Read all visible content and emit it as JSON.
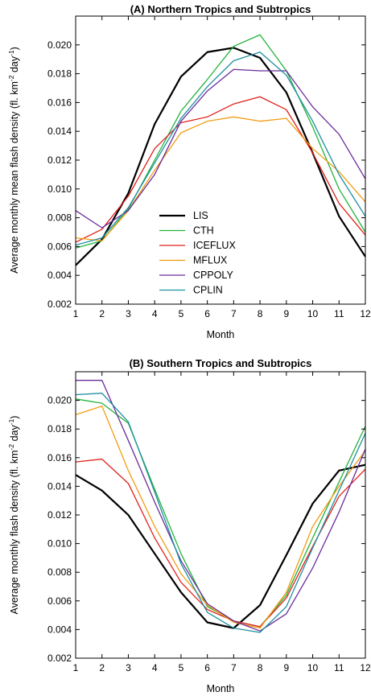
{
  "chart_data": [
    {
      "type": "line",
      "title": "(A) Northern Tropics and Subtropics",
      "xlabel": "Month",
      "ylabel": "Average monthly mean flash density (fl. km",
      "ylabel_sup1": "-2",
      "ylabel_mid": " day",
      "ylabel_sup2": "-1",
      "ylabel_end": ")",
      "xlim": [
        1,
        12
      ],
      "ylim": [
        0.002,
        0.022
      ],
      "x": [
        1,
        2,
        3,
        4,
        5,
        6,
        7,
        8,
        9,
        10,
        11,
        12
      ],
      "x_ticks": [
        "1",
        "2",
        "3",
        "4",
        "5",
        "6",
        "7",
        "8",
        "9",
        "10",
        "11",
        "12"
      ],
      "y_ticks": [
        0.002,
        0.004,
        0.006,
        0.008,
        0.01,
        0.012,
        0.014,
        0.016,
        0.018,
        0.02
      ],
      "y_tick_labels": [
        "0.002",
        "0.004",
        "0.006",
        "0.008",
        "0.010",
        "0.012",
        "0.014",
        "0.016",
        "0.018",
        "0.020"
      ],
      "grid": false,
      "legend_position": "lower-center",
      "series": [
        {
          "name": "LIS",
          "color": "#000000",
          "width": 2.2,
          "values": [
            0.0047,
            0.0065,
            0.0097,
            0.0145,
            0.0178,
            0.0195,
            0.0198,
            0.0191,
            0.0167,
            0.0125,
            0.0081,
            0.0053
          ]
        },
        {
          "name": "CTH",
          "color": "#22b33a",
          "width": 1.3,
          "values": [
            0.0059,
            0.0064,
            0.0086,
            0.012,
            0.0154,
            0.0176,
            0.0199,
            0.0207,
            0.0182,
            0.0143,
            0.01,
            0.007
          ]
        },
        {
          "name": "ICEFLUX",
          "color": "#e0201b",
          "width": 1.3,
          "values": [
            0.0063,
            0.0072,
            0.0095,
            0.0128,
            0.0146,
            0.015,
            0.0159,
            0.0164,
            0.0155,
            0.0125,
            0.009,
            0.0068
          ]
        },
        {
          "name": "MFLUX",
          "color": "#f39c12",
          "width": 1.3,
          "values": [
            0.0066,
            0.0064,
            0.0085,
            0.0113,
            0.0139,
            0.0147,
            0.015,
            0.0147,
            0.0149,
            0.0128,
            0.0112,
            0.0091
          ]
        },
        {
          "name": "CPPOLY",
          "color": "#6a2c9a",
          "width": 1.3,
          "values": [
            0.0085,
            0.0073,
            0.0085,
            0.011,
            0.0147,
            0.0168,
            0.0183,
            0.0182,
            0.0182,
            0.0157,
            0.0138,
            0.0107
          ]
        },
        {
          "name": "CPLIN",
          "color": "#1f8fa0",
          "width": 1.3,
          "values": [
            0.0061,
            0.0066,
            0.0087,
            0.0118,
            0.0149,
            0.0171,
            0.0189,
            0.0195,
            0.0179,
            0.0147,
            0.011,
            0.0081
          ]
        }
      ]
    },
    {
      "type": "line",
      "title": "(B) Southern Tropics and Subtropics",
      "xlabel": "Month",
      "ylabel": "Average monthly flash density (fl. km",
      "ylabel_sup1": "-2",
      "ylabel_mid": " day",
      "ylabel_sup2": "-1",
      "ylabel_end": ")",
      "xlim": [
        1,
        12
      ],
      "ylim": [
        0.002,
        0.022
      ],
      "x": [
        1,
        2,
        3,
        4,
        5,
        6,
        7,
        8,
        9,
        10,
        11,
        12
      ],
      "x_ticks": [
        "1",
        "2",
        "3",
        "4",
        "5",
        "6",
        "7",
        "8",
        "9",
        "10",
        "11",
        "12"
      ],
      "y_ticks": [
        0.002,
        0.004,
        0.006,
        0.008,
        0.01,
        0.012,
        0.014,
        0.016,
        0.018,
        0.02
      ],
      "y_tick_labels": [
        "0.002",
        "0.004",
        "0.006",
        "0.008",
        "0.010",
        "0.012",
        "0.014",
        "0.016",
        "0.018",
        "0.020"
      ],
      "grid": false,
      "series": [
        {
          "name": "LIS",
          "color": "#000000",
          "width": 2.2,
          "values": [
            0.0148,
            0.0137,
            0.012,
            0.0093,
            0.0066,
            0.0045,
            0.0041,
            0.0057,
            0.0092,
            0.0128,
            0.0151,
            0.0155
          ]
        },
        {
          "name": "CTH",
          "color": "#22b33a",
          "width": 1.3,
          "values": [
            0.0201,
            0.0198,
            0.0184,
            0.0138,
            0.0093,
            0.0056,
            0.0046,
            0.0042,
            0.0064,
            0.0104,
            0.0143,
            0.0182
          ]
        },
        {
          "name": "ICEFLUX",
          "color": "#e0201b",
          "width": 1.3,
          "values": [
            0.0157,
            0.0159,
            0.0142,
            0.0104,
            0.0073,
            0.0054,
            0.0046,
            0.0042,
            0.0062,
            0.0098,
            0.0133,
            0.0152
          ]
        },
        {
          "name": "MFLUX",
          "color": "#f39c12",
          "width": 1.3,
          "values": [
            0.019,
            0.0196,
            0.0151,
            0.0112,
            0.0079,
            0.0057,
            0.0045,
            0.0041,
            0.0066,
            0.0112,
            0.014,
            0.0165
          ]
        },
        {
          "name": "CPPOLY",
          "color": "#6a2c9a",
          "width": 1.3,
          "values": [
            0.0214,
            0.0214,
            0.0172,
            0.0129,
            0.0088,
            0.0058,
            0.0046,
            0.0039,
            0.0051,
            0.0083,
            0.0122,
            0.0166
          ]
        },
        {
          "name": "CPLIN",
          "color": "#1f8fa0",
          "width": 1.3,
          "values": [
            0.0204,
            0.0205,
            0.0185,
            0.0136,
            0.0086,
            0.0052,
            0.0041,
            0.0038,
            0.0056,
            0.0097,
            0.0137,
            0.0177
          ]
        }
      ]
    }
  ]
}
